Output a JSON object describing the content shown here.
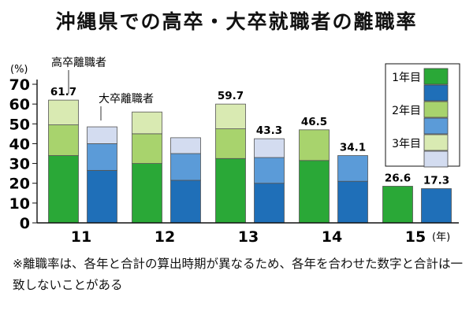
{
  "title": "沖縄県での高卒・大卒就職者の離職率",
  "note": "※離職率は、各年と合計の算出時期が異なるため、各年を合わせた数字と合計は一致しないことがある",
  "colors": {
    "high_y1": "#2aa837",
    "high_y2": "#a8d36d",
    "high_y3": "#d9eab2",
    "univ_y1": "#1f6fb8",
    "univ_y2": "#5b9bd8",
    "univ_y3": "#d3dcf0"
  },
  "chart_data": {
    "type": "bar",
    "stacked": true,
    "y_unit_label": "(%)",
    "x_unit_label": "(年)",
    "ylim": [
      0,
      70
    ],
    "yticks": [
      0,
      10,
      20,
      30,
      40,
      50,
      60,
      70
    ],
    "categories": [
      "11",
      "12",
      "13",
      "14",
      "15"
    ],
    "groups": [
      {
        "name": "高卒離職者",
        "segments": [
          {
            "name": "1年目",
            "values": [
              34,
              30,
              32.5,
              31.5,
              18.5
            ]
          },
          {
            "name": "2年目",
            "values": [
              15.5,
              15,
              15,
              15.5,
              null
            ]
          },
          {
            "name": "3年目",
            "values": [
              12.5,
              11,
              12.5,
              null,
              null
            ]
          }
        ],
        "totals": [
          61.7,
          null,
          59.7,
          46.5,
          26.6
        ]
      },
      {
        "name": "大卒離職者",
        "segments": [
          {
            "name": "1年目",
            "values": [
              26.5,
              21.5,
              20,
              21,
              17.3
            ]
          },
          {
            "name": "2年目",
            "values": [
              13.5,
              13.5,
              13,
              13,
              null
            ]
          },
          {
            "name": "3年目",
            "values": [
              8.5,
              8,
              9.5,
              null,
              null
            ]
          }
        ],
        "totals": [
          null,
          null,
          43.3,
          34.1,
          17.3
        ]
      }
    ],
    "annotations": [
      {
        "text": "高卒離職者",
        "category": "11",
        "group": 0
      },
      {
        "text": "大卒離職者",
        "category": "11",
        "group": 1
      }
    ],
    "legend": {
      "placement": "top-right",
      "entries": [
        "1年目",
        "2年目",
        "3年目"
      ]
    }
  }
}
